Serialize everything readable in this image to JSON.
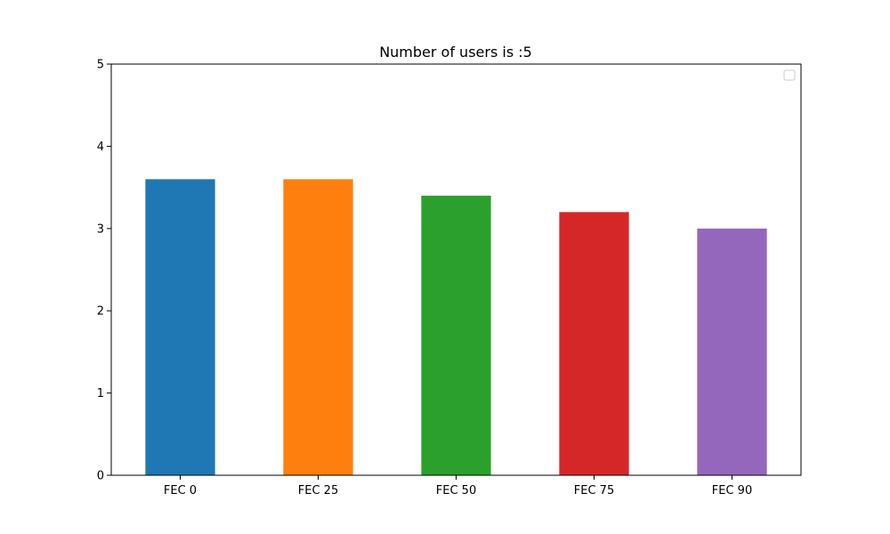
{
  "chart_data": {
    "type": "bar",
    "title": "Number of users is :5",
    "categories": [
      "FEC 0",
      "FEC 25",
      "FEC 50",
      "FEC 75",
      "FEC 90"
    ],
    "values": [
      3.6,
      3.6,
      3.4,
      3.2,
      3.0
    ],
    "colors": [
      "#1f77b4",
      "#ff7f0e",
      "#2ca02c",
      "#d62728",
      "#9467bd"
    ],
    "xlabel": "",
    "ylabel": "",
    "ylim": [
      0,
      5
    ],
    "yticks": [
      "0",
      "1",
      "2",
      "3",
      "4",
      "5"
    ],
    "grid": false,
    "legend": {
      "placement": "top-right",
      "entries": []
    }
  }
}
